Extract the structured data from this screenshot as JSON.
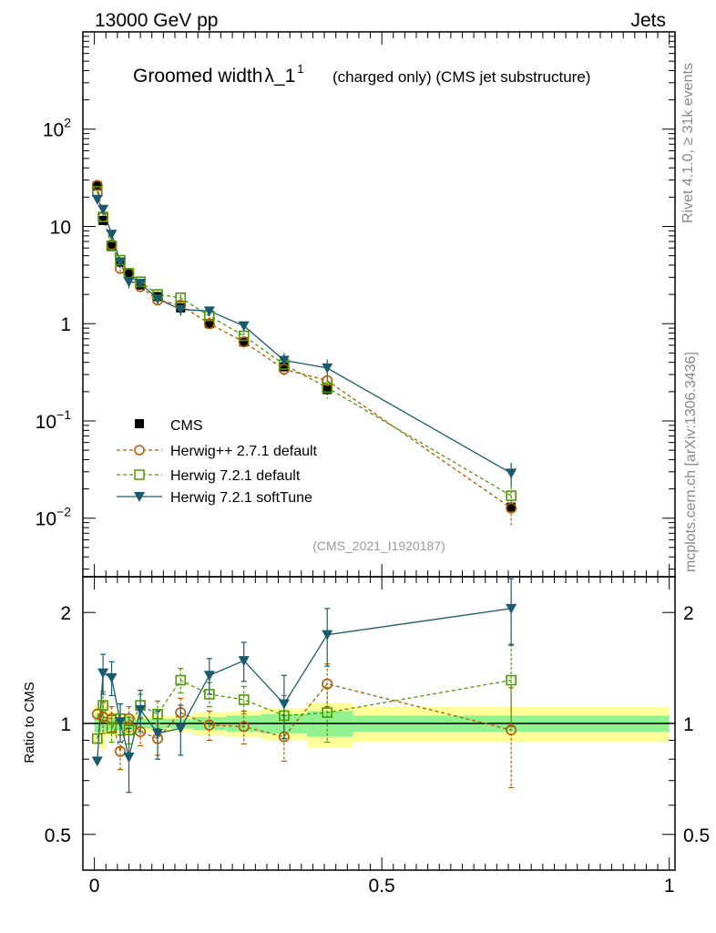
{
  "header": {
    "energy_label": "13000 GeV pp",
    "process_label": "Jets"
  },
  "plot_title": {
    "main": "Groomed width",
    "lambda_symbol": "λ",
    "lambda_suffix": "_1",
    "superscript": "1",
    "subtitle": "(charged only) (CMS jet substructure)"
  },
  "side_labels": {
    "rivet": "Rivet 4.1.0, ≥ 31k events",
    "mcplots": "mcplots.cern.ch [arXiv:1306.3436]"
  },
  "analysis_tag": "(CMS_2021_I1920187)",
  "colors": {
    "cms": "#000000",
    "herwigpp": "#b35900",
    "herwig721": "#4c9900",
    "softtune": "#1a5a6e",
    "band_inner": "#8ff28f",
    "band_outer": "#ffff99"
  },
  "legend": {
    "items": [
      {
        "label": "CMS",
        "marker": "filled-square",
        "color": "#000000"
      },
      {
        "label": "Herwig++ 2.7.1 default",
        "marker": "open-circle",
        "color": "#b35900"
      },
      {
        "label": "Herwig 7.2.1 default",
        "marker": "open-square",
        "color": "#4c9900"
      },
      {
        "label": "Herwig 7.2.1 softTune",
        "marker": "filled-triangle-down",
        "color": "#1a5a6e"
      }
    ]
  },
  "chart_data": {
    "type": "line",
    "x": [
      0.005,
      0.015,
      0.03,
      0.045,
      0.06,
      0.08,
      0.11,
      0.15,
      0.2,
      0.26,
      0.33,
      0.405,
      0.725
    ],
    "x_edges": [
      0.0,
      0.01,
      0.02,
      0.04,
      0.05,
      0.07,
      0.09,
      0.13,
      0.17,
      0.23,
      0.29,
      0.37,
      0.45,
      1.0
    ],
    "xlim": [
      -0.02,
      1.01
    ],
    "xticks": [
      0,
      0.5,
      1
    ],
    "xtick_labels": [
      "0",
      "0.5",
      "1"
    ],
    "main": {
      "yscale": "log",
      "ylim": [
        0.0025,
        1000
      ],
      "ytick_labels": [
        {
          "value": 100,
          "mantissa": "10",
          "exponent": "2"
        },
        {
          "value": 10,
          "mantissa": "10",
          "exponent": ""
        },
        {
          "value": 1,
          "mantissa": "1",
          "exponent": ""
        },
        {
          "value": 0.1,
          "mantissa": "10",
          "exponent": "−1"
        },
        {
          "value": 0.01,
          "mantissa": "10",
          "exponent": "−2"
        }
      ],
      "series": [
        {
          "name": "CMS",
          "values": [
            26,
            11.5,
            6.2,
            4.3,
            3.3,
            2.5,
            1.9,
            1.45,
            1.0,
            0.65,
            0.36,
            0.21,
            0.013
          ]
        },
        {
          "name": "Herwig++ 2.7.1 default",
          "values": [
            26.5,
            12.5,
            6.5,
            3.7,
            3.3,
            2.4,
            1.75,
            1.55,
            1.0,
            0.65,
            0.34,
            0.26,
            0.0127
          ],
          "err": [
            0,
            1.0,
            0.5,
            0.3,
            0.25,
            0.2,
            0.15,
            0.15,
            0.1,
            0.06,
            0.05,
            0.04,
            0.0045
          ]
        },
        {
          "name": "Herwig 7.2.1 default",
          "values": [
            23,
            12.5,
            6.3,
            4.5,
            3.3,
            2.7,
            2.0,
            1.85,
            1.2,
            0.75,
            0.38,
            0.22,
            0.017
          ],
          "err": [
            0,
            1.0,
            0.5,
            0.35,
            0.25,
            0.2,
            0.15,
            0.15,
            0.1,
            0.06,
            0.06,
            0.05,
            0.004
          ]
        },
        {
          "name": "Herwig 7.2.1 softTune",
          "values": [
            19,
            15,
            8.3,
            4.3,
            2.7,
            2.6,
            1.8,
            1.4,
            1.35,
            0.95,
            0.42,
            0.35,
            0.029
          ],
          "err": [
            0,
            1.5,
            0.9,
            0.5,
            0.4,
            0.3,
            0.2,
            0.2,
            0.15,
            0.1,
            0.08,
            0.08,
            0.008
          ]
        }
      ]
    },
    "ratio": {
      "ylabel": "Ratio to CMS",
      "ylim": [
        0.4,
        2.5
      ],
      "ytick_labels": [
        {
          "value": 0.5,
          "label": "0.5"
        },
        {
          "value": 1,
          "label": "1"
        },
        {
          "value": 2,
          "label": "2"
        }
      ],
      "band_inner_half": [
        0.05,
        0.05,
        0.04,
        0.04,
        0.04,
        0.03,
        0.03,
        0.03,
        0.04,
        0.05,
        0.06,
        0.08,
        0.05
      ],
      "band_outer_half": [
        0.12,
        0.15,
        0.08,
        0.06,
        0.06,
        0.05,
        0.05,
        0.05,
        0.07,
        0.08,
        0.1,
        0.14,
        0.11
      ],
      "series": [
        {
          "name": "Herwig++ 2.7.1 default",
          "values": [
            1.06,
            1.04,
            1.03,
            0.84,
            1.03,
            0.95,
            0.91,
            1.07,
            0.99,
            0.98,
            0.92,
            1.28,
            0.96
          ],
          "err": [
            0,
            0.1,
            0.08,
            0.09,
            0.08,
            0.08,
            0.09,
            0.1,
            0.09,
            0.1,
            0.13,
            0.17,
            0.29
          ]
        },
        {
          "name": "Herwig 7.2.1 default",
          "values": [
            0.91,
            1.12,
            0.97,
            1.03,
            0.96,
            1.12,
            1.06,
            1.31,
            1.2,
            1.16,
            1.05,
            1.07,
            1.31
          ],
          "err": [
            0,
            0.1,
            0.08,
            0.1,
            0.08,
            0.08,
            0.09,
            0.1,
            0.09,
            0.1,
            0.14,
            0.18,
            0.33
          ]
        },
        {
          "name": "Herwig 7.2.1 softTune",
          "values": [
            0.79,
            1.37,
            1.33,
            1.01,
            0.81,
            1.09,
            0.94,
            0.97,
            1.35,
            1.48,
            1.13,
            1.74,
            2.05
          ],
          "err": [
            0,
            0.17,
            0.14,
            0.12,
            0.16,
            0.14,
            0.14,
            0.15,
            0.15,
            0.18,
            0.22,
            0.31,
            0.42
          ]
        }
      ]
    }
  }
}
